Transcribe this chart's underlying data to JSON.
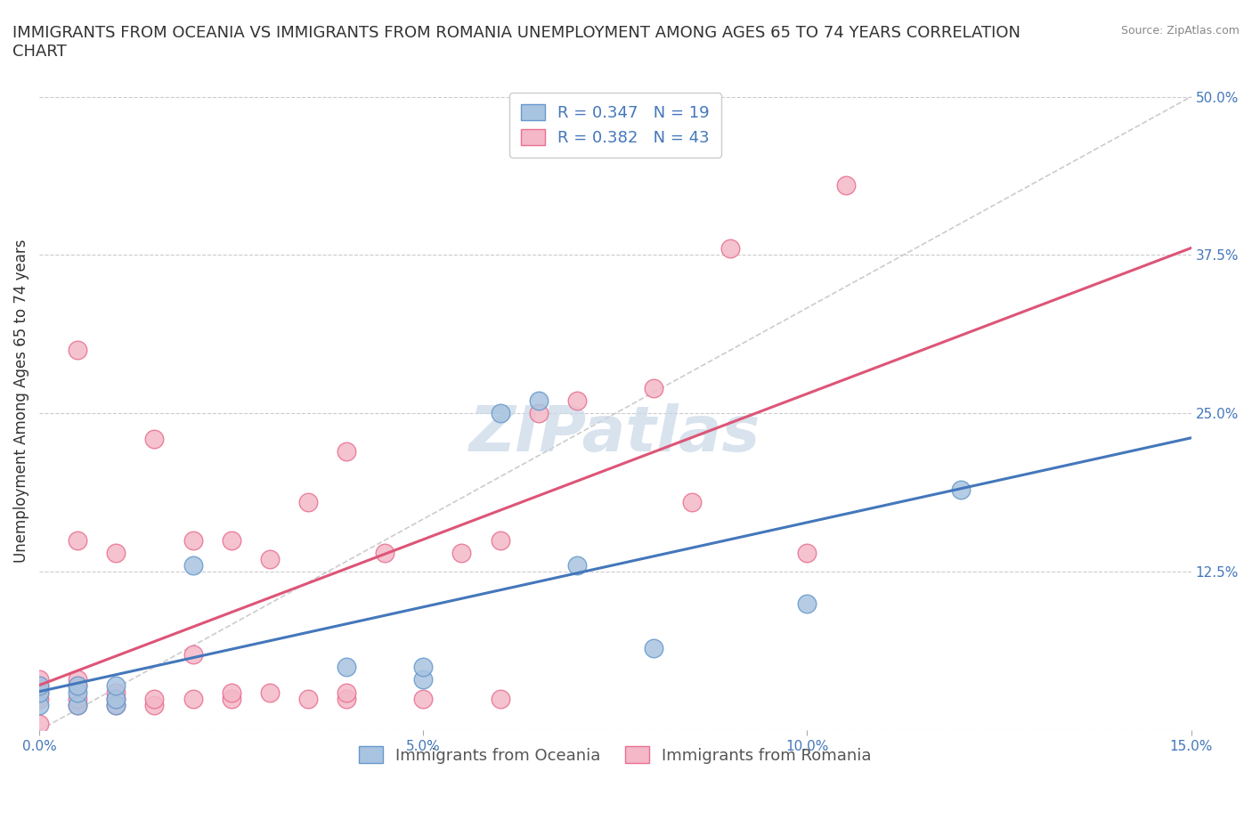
{
  "title": "IMMIGRANTS FROM OCEANIA VS IMMIGRANTS FROM ROMANIA UNEMPLOYMENT AMONG AGES 65 TO 74 YEARS CORRELATION\nCHART",
  "source_text": "Source: ZipAtlas.com",
  "xlabel": "",
  "ylabel": "Unemployment Among Ages 65 to 74 years",
  "xlim": [
    0.0,
    0.15
  ],
  "ylim": [
    0.0,
    0.52
  ],
  "xticks": [
    0.0,
    0.05,
    0.1,
    0.15
  ],
  "xticklabels": [
    "0.0%",
    "5.0%",
    "10.0%",
    "15.0%"
  ],
  "yticks_right": [
    0.0,
    0.125,
    0.25,
    0.375,
    0.5
  ],
  "yticklabels_right": [
    "",
    "12.5%",
    "25.0%",
    "37.5%",
    "50.0%"
  ],
  "oceania_color": "#a8c4e0",
  "oceania_edge": "#6699cc",
  "romania_color": "#f4b8c8",
  "romania_edge": "#e87090",
  "line_oceania": "#4477bb",
  "line_romania": "#dd5577",
  "R_oceania": 0.347,
  "N_oceania": 19,
  "R_romania": 0.382,
  "N_romania": 43,
  "legend_label_oceania": "Immigrants from Oceania",
  "legend_label_romania": "Immigrants from Romania",
  "watermark": "ZIPatlas",
  "watermark_color": "#c8d8e8",
  "oceania_x": [
    0.0,
    0.0,
    0.0,
    0.005,
    0.005,
    0.005,
    0.01,
    0.01,
    0.01,
    0.02,
    0.04,
    0.05,
    0.05,
    0.06,
    0.065,
    0.07,
    0.08,
    0.1,
    0.12
  ],
  "oceania_y": [
    0.02,
    0.03,
    0.035,
    0.02,
    0.03,
    0.035,
    0.02,
    0.025,
    0.035,
    0.13,
    0.05,
    0.04,
    0.05,
    0.25,
    0.26,
    0.13,
    0.065,
    0.1,
    0.19
  ],
  "romania_x": [
    0.0,
    0.0,
    0.0,
    0.0,
    0.0,
    0.005,
    0.005,
    0.005,
    0.005,
    0.005,
    0.005,
    0.01,
    0.01,
    0.01,
    0.01,
    0.015,
    0.015,
    0.015,
    0.02,
    0.02,
    0.02,
    0.025,
    0.025,
    0.025,
    0.03,
    0.03,
    0.035,
    0.035,
    0.04,
    0.04,
    0.04,
    0.045,
    0.05,
    0.055,
    0.06,
    0.06,
    0.065,
    0.07,
    0.08,
    0.085,
    0.09,
    0.1,
    0.105
  ],
  "romania_y": [
    0.025,
    0.03,
    0.035,
    0.04,
    0.005,
    0.02,
    0.025,
    0.035,
    0.04,
    0.15,
    0.3,
    0.02,
    0.025,
    0.03,
    0.14,
    0.02,
    0.025,
    0.23,
    0.025,
    0.06,
    0.15,
    0.025,
    0.03,
    0.15,
    0.03,
    0.135,
    0.025,
    0.18,
    0.025,
    0.03,
    0.22,
    0.14,
    0.025,
    0.14,
    0.025,
    0.15,
    0.25,
    0.26,
    0.27,
    0.18,
    0.38,
    0.14,
    0.43
  ],
  "background_color": "#ffffff",
  "grid_color": "#cccccc",
  "title_fontsize": 13,
  "axis_label_fontsize": 12,
  "tick_fontsize": 11,
  "legend_fontsize": 13,
  "right_label_color": "#4477bb"
}
